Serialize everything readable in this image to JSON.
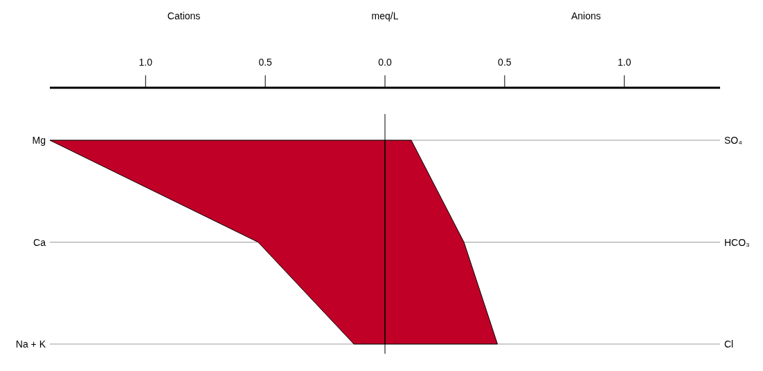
{
  "chart_data": {
    "type": "area",
    "orientation": "horizontal",
    "xlabel": "meq/L",
    "categories": [
      "Mg",
      "Ca",
      "Na + K"
    ],
    "y2_categories": [
      "SO₄",
      "HCO₃",
      "Cl"
    ],
    "series": [
      {
        "color": "#c00027",
        "values": [
          -1.4,
          -0.53,
          -0.13
        ]
      },
      {
        "color": "#c00027",
        "values": [
          0.11,
          0.33,
          0.47
        ]
      }
    ],
    "xlim": [
      -1.4,
      1.4
    ],
    "xticks": [
      {
        "value": -1,
        "label": "1.0"
      },
      {
        "value": -0.5,
        "label": "0.5"
      },
      {
        "value": 0,
        "label": "0.0"
      },
      {
        "value": 0.5,
        "label": "0.5"
      },
      {
        "value": 1,
        "label": "1.0"
      }
    ],
    "ref_lines": [
      {
        "axis": "x",
        "value": 0,
        "color": "#000000"
      }
    ],
    "annotations": [
      "Cations",
      "Anions"
    ],
    "grid": "y"
  }
}
